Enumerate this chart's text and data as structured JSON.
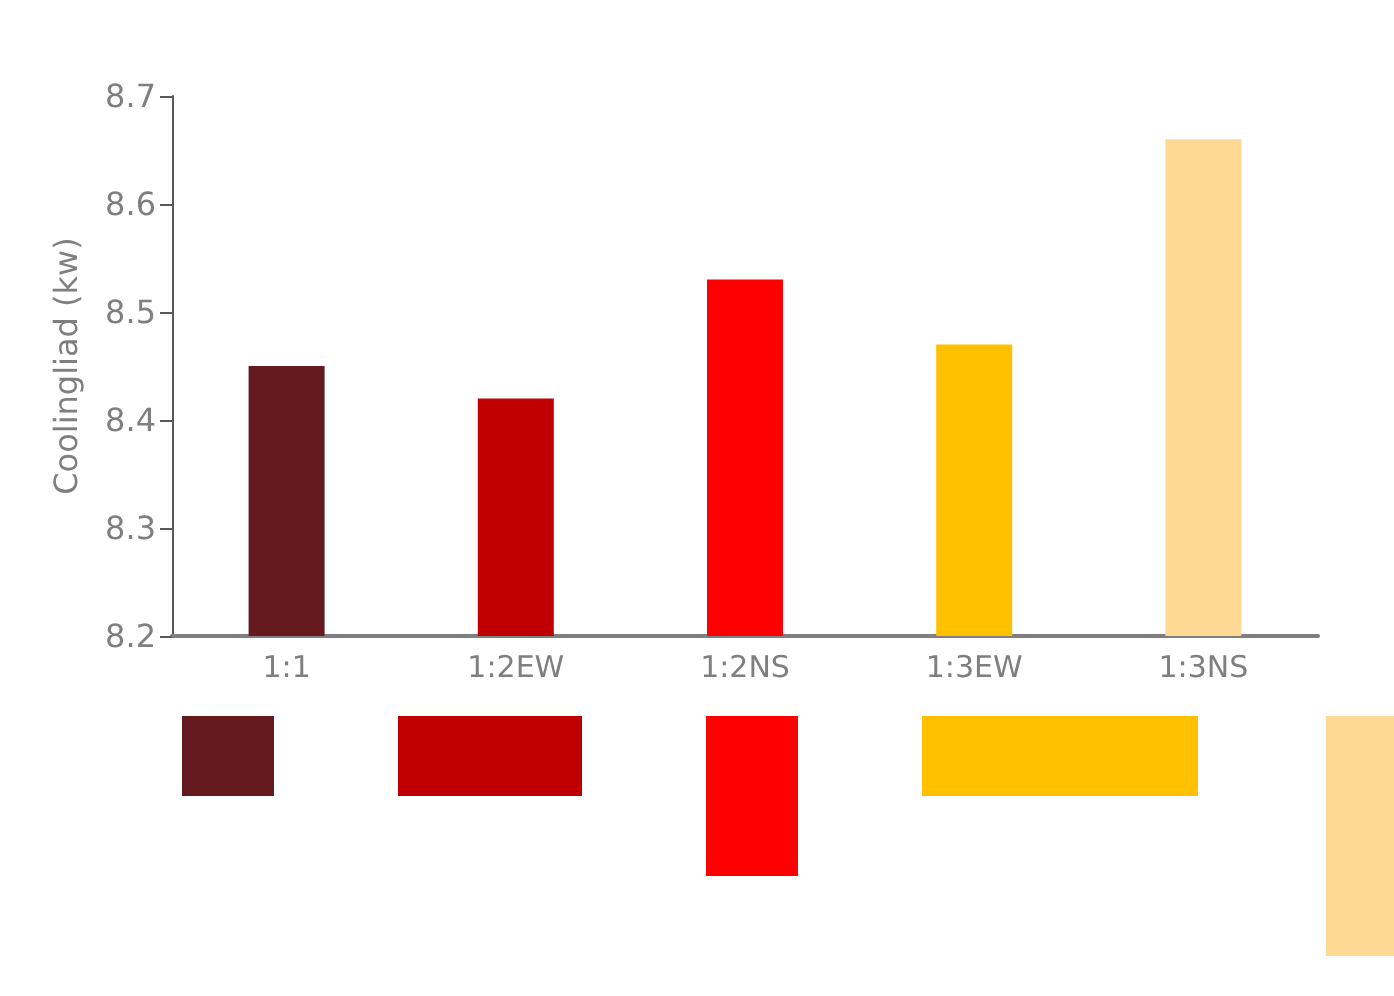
{
  "chart_data": {
    "type": "bar",
    "ylabel": "Coolingliad (kw)",
    "categories": [
      "1:1",
      "1:2EW",
      "1:2NS",
      "1:3EW",
      "1:3NS"
    ],
    "values": [
      8.45,
      8.42,
      8.53,
      8.47,
      8.66
    ],
    "colors": [
      "#641a1e",
      "#c00000",
      "#ff0000",
      "#ffc000",
      "#fdd995"
    ],
    "ylim": [
      8.2,
      8.7
    ],
    "yticks": [
      8.2,
      8.3,
      8.4,
      8.5,
      8.6,
      8.7
    ],
    "grid": false
  }
}
